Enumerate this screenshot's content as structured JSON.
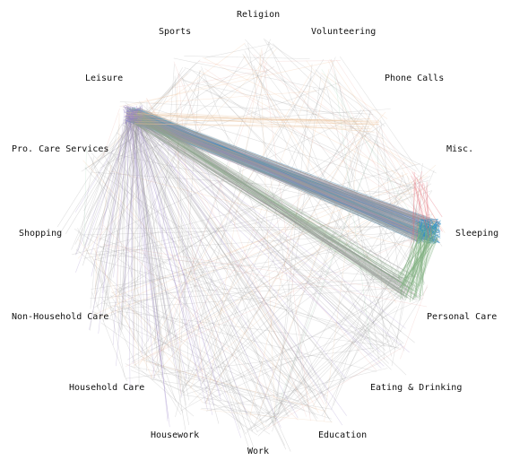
{
  "nodes": [
    {
      "id": "religion",
      "label": "Religion"
    },
    {
      "id": "volunteering",
      "label": "Volunteering"
    },
    {
      "id": "phone_calls",
      "label": "Phone Calls"
    },
    {
      "id": "misc",
      "label": "Misc."
    },
    {
      "id": "sleeping",
      "label": "Sleeping"
    },
    {
      "id": "personal_care",
      "label": "Personal Care"
    },
    {
      "id": "eating_drinking",
      "label": "Eating & Drinking"
    },
    {
      "id": "education",
      "label": "Education"
    },
    {
      "id": "work",
      "label": "Work"
    },
    {
      "id": "housework",
      "label": "Housework"
    },
    {
      "id": "household_care",
      "label": "Household Care"
    },
    {
      "id": "non_household_care",
      "label": "Non-Household Care"
    },
    {
      "id": "shopping",
      "label": "Shopping"
    },
    {
      "id": "pro_care_services",
      "label": "Pro. Care Services"
    },
    {
      "id": "leisure",
      "label": "Leisure"
    },
    {
      "id": "sports",
      "label": "Sports"
    }
  ],
  "colors": {
    "leisure": "#9a86c8",
    "sleeping": "#2f8fc4",
    "personal_care": "#7fb07f",
    "work": "#f0b888",
    "housework": "#e9a8a0",
    "misc": "#e46f7a",
    "phone_calls": "#e9c29a",
    "shopping": "#9fd4b3",
    "default": "#9b9b9b"
  }
}
